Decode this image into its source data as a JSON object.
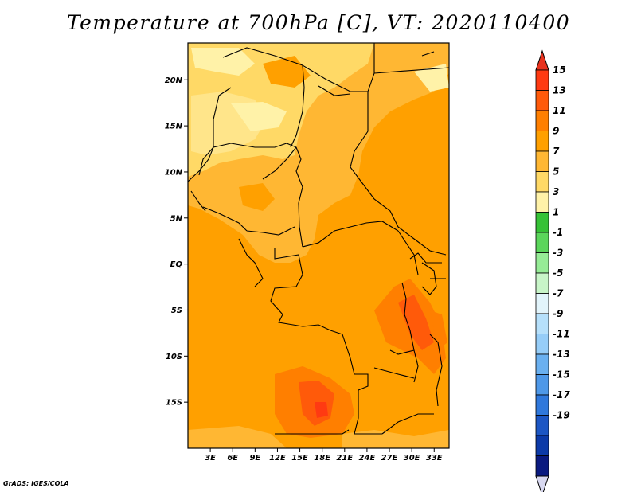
{
  "title": "Temperature at 700hPa [C], VT: 2020110400",
  "credit": "GrADS: IGES/COLA",
  "map": {
    "lon_range": [
      0,
      35
    ],
    "lat_range": [
      -20,
      24
    ],
    "lat_ticks": [
      {
        "value": 20,
        "label": "20N"
      },
      {
        "value": 15,
        "label": "15N"
      },
      {
        "value": 10,
        "label": "10N"
      },
      {
        "value": 5,
        "label": "5N"
      },
      {
        "value": 0,
        "label": "EQ"
      },
      {
        "value": -5,
        "label": "5S"
      },
      {
        "value": -10,
        "label": "10S"
      },
      {
        "value": -15,
        "label": "15S"
      }
    ],
    "lon_ticks": [
      {
        "value": 3,
        "label": "3E"
      },
      {
        "value": 6,
        "label": "6E"
      },
      {
        "value": 9,
        "label": "9E"
      },
      {
        "value": 12,
        "label": "12E"
      },
      {
        "value": 15,
        "label": "15E"
      },
      {
        "value": 18,
        "label": "18E"
      },
      {
        "value": 21,
        "label": "21E"
      },
      {
        "value": 24,
        "label": "24E"
      },
      {
        "value": 27,
        "label": "27E"
      },
      {
        "value": 30,
        "label": "30E"
      },
      {
        "value": 33,
        "label": "33E"
      }
    ]
  },
  "colorbar": {
    "bins": [
      {
        "label": "15",
        "color": "#ff3a12"
      },
      {
        "label": "13",
        "color": "#ff5a0a"
      },
      {
        "label": "11",
        "color": "#ff7f00"
      },
      {
        "label": "9",
        "color": "#ffa000"
      },
      {
        "label": "7",
        "color": "#ffb733"
      },
      {
        "label": "5",
        "color": "#ffd966"
      },
      {
        "label": "3",
        "color": "#fff2a8"
      },
      {
        "label": "1",
        "color": "#36c236"
      },
      {
        "label": "-1",
        "color": "#5bd65b"
      },
      {
        "label": "-3",
        "color": "#96ec96"
      },
      {
        "label": "-5",
        "color": "#c8f5c8"
      },
      {
        "label": "-7",
        "color": "#e2f4fb"
      },
      {
        "label": "-9",
        "color": "#b6e0fb"
      },
      {
        "label": "-11",
        "color": "#96cdf8"
      },
      {
        "label": "-13",
        "color": "#6ab0f0"
      },
      {
        "label": "-15",
        "color": "#4e98e8"
      },
      {
        "label": "-17",
        "color": "#2f78dc"
      },
      {
        "label": "-19",
        "color": "#1c56c4"
      }
    ],
    "extra_bins": [
      "#0c3aa8",
      "#0a1a80"
    ],
    "top_arrow_color": "#e8321e",
    "bottom_arrow_color": "#d8d8f0"
  }
}
